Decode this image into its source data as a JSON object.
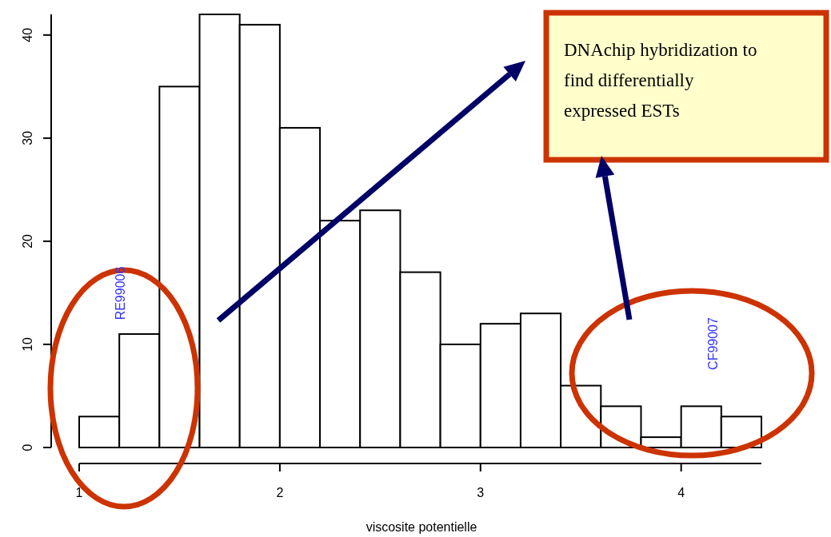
{
  "chart_data": {
    "type": "histogram",
    "xlabel": "viscosite potentielle",
    "bins": [
      1.0,
      1.2,
      1.4,
      1.6,
      1.8,
      2.0,
      2.2,
      2.4,
      2.6,
      2.8,
      3.0,
      3.2,
      3.4,
      3.6,
      3.8,
      4.0,
      4.2,
      4.4
    ],
    "values": [
      3,
      11,
      35,
      42,
      41,
      31,
      22,
      23,
      17,
      10,
      12,
      13,
      6,
      4,
      1,
      4,
      3
    ],
    "color": "#ffffff",
    "xlim": [
      1,
      4.4
    ],
    "xticks": [
      1,
      2,
      3,
      4
    ],
    "ylim": [
      0,
      42
    ],
    "yticks": [
      0,
      10,
      20,
      30,
      40
    ],
    "grid": false,
    "annotations": [
      "RE99006",
      "CF99007",
      "DNAchip hybridization to find differentially expressed ESTs"
    ]
  }
}
